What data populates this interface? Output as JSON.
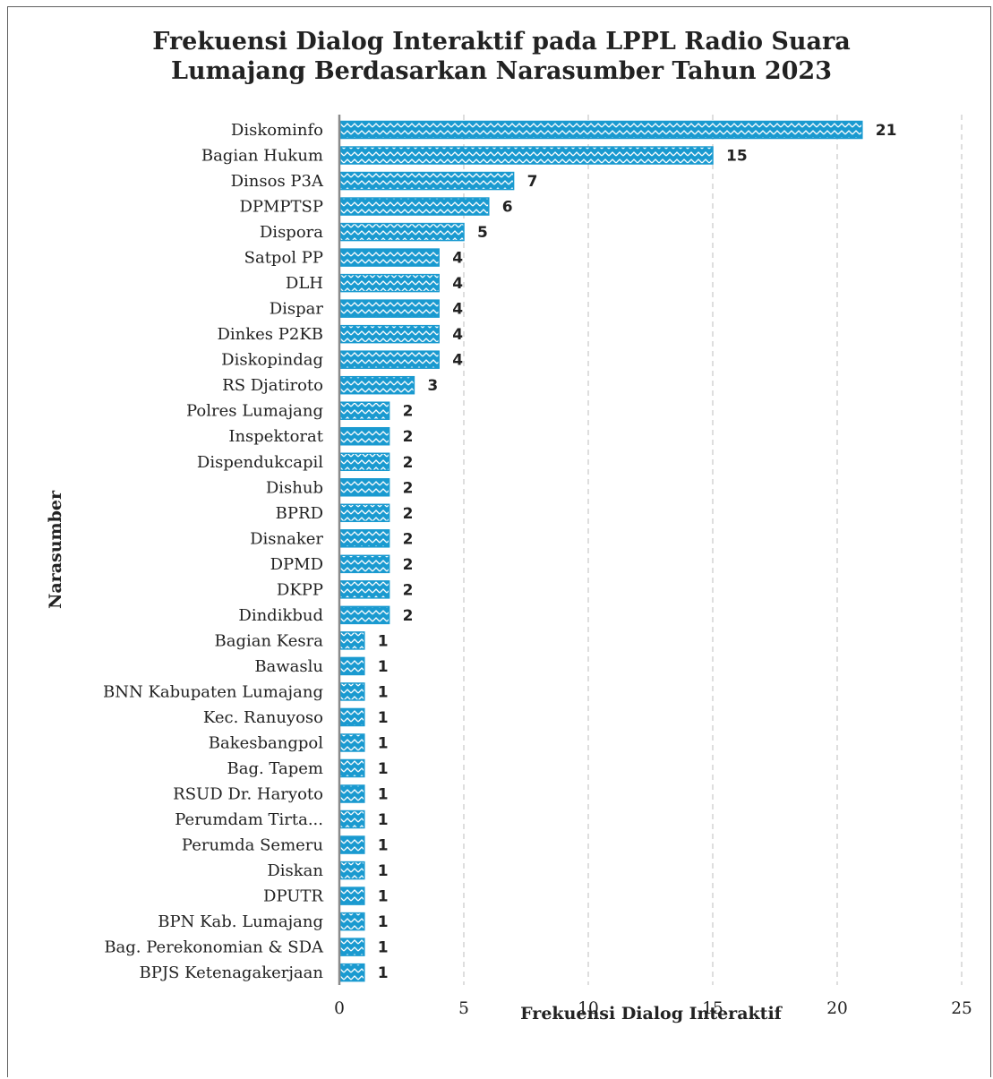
{
  "colors": {
    "bar": "#1a9ad0",
    "bar_hatch": "#ffffff",
    "grid": "#bdbdbd",
    "axis": "#8a8a8a",
    "text": "#222222",
    "border": "#5f5f5f"
  },
  "chart_data": {
    "type": "bar",
    "orientation": "horizontal",
    "title_lines": [
      "Frekuensi Dialog Interaktif pada LPPL Radio Suara",
      "Lumajang Berdasarkan Narasumber Tahun 2023"
    ],
    "xlabel": "Frekuensi Dialog Interaktif",
    "ylabel": "Narasumber",
    "xlim": [
      0,
      25
    ],
    "xticks": [
      0,
      5,
      10,
      15,
      20,
      25
    ],
    "grid": "vertical dashed",
    "data_labels": true,
    "bar_fill": "hatched",
    "categories": [
      "Diskominfo",
      "Bagian Hukum",
      "Dinsos P3A",
      "DPMPTSP",
      "Dispora",
      "Satpol PP",
      "DLH",
      "Dispar",
      "Dinkes P2KB",
      "Diskopindag",
      "RS Djatiroto",
      "Polres Lumajang",
      "Inspektorat",
      "Dispendukcapil",
      "Dishub",
      "BPRD",
      "Disnaker",
      "DPMD",
      "DKPP",
      "Dindikbud",
      "Bagian Kesra",
      "Bawaslu",
      "BNN Kabupaten Lumajang",
      "Kec. Ranuyoso",
      "Bakesbangpol",
      "Bag. Tapem",
      "RSUD Dr. Haryoto",
      "Perumdam Tirta...",
      "Perumda Semeru",
      "Diskan",
      "DPUTR",
      "BPN Kab. Lumajang",
      "Bag. Perekonomian & SDA",
      "BPJS Ketenagakerjaan"
    ],
    "values": [
      21,
      15,
      7,
      6,
      5,
      4,
      4,
      4,
      4,
      4,
      3,
      2,
      2,
      2,
      2,
      2,
      2,
      2,
      2,
      2,
      1,
      1,
      1,
      1,
      1,
      1,
      1,
      1,
      1,
      1,
      1,
      1,
      1,
      1
    ]
  }
}
